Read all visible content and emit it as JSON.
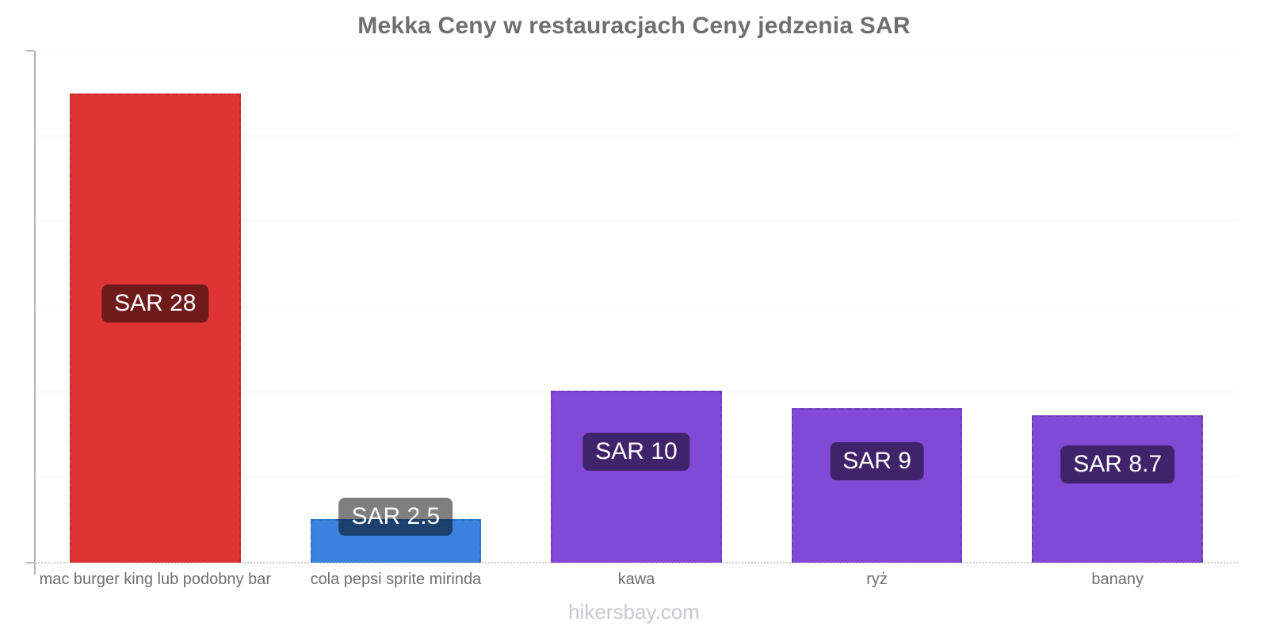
{
  "title": "Mekka Ceny w restauracjach Ceny jedzenia SAR",
  "footer": {
    "watermark": "hikersbay.com"
  },
  "chart_data": {
    "type": "bar",
    "title": "Mekka Ceny w restauracjach Ceny jedzenia SAR",
    "currency": "SAR",
    "categories": [
      "mac burger king lub podobny bar",
      "cola pepsi sprite mirinda",
      "kawa",
      "ryż",
      "banany"
    ],
    "values": [
      28,
      2.5,
      10,
      9,
      8.7
    ],
    "value_labels": [
      "SAR 28",
      "SAR 2.5",
      "SAR 10",
      "SAR 9",
      "SAR 8.7"
    ],
    "bar_display_values": [
      27.5,
      2.55,
      10.1,
      9.05,
      8.65
    ],
    "bar_colors": [
      "#df3434",
      "#3a82dd",
      "#8149d6",
      "#8149d6",
      "#8149d6"
    ],
    "ylim": [
      0,
      30
    ],
    "yticks": [
      0,
      5,
      10,
      15,
      20,
      25,
      30
    ],
    "ytick_marks": [
      0,
      30
    ],
    "xlabel": "",
    "ylabel": "",
    "legend": "none",
    "grid": "horizontal-faint"
  },
  "colors": {
    "title_text": "#6f6f6f",
    "axis_text": "#8c8c8c",
    "x_label_text": "#6f6f6f",
    "axis_line": "#b5b5b5",
    "gridline": "#f4f4f4",
    "baseline": "#cccccc",
    "value_label_bg": "rgba(0,0,0,0.5)",
    "value_label_text": "#ffffff",
    "footer_text": "#c8c8d0"
  }
}
